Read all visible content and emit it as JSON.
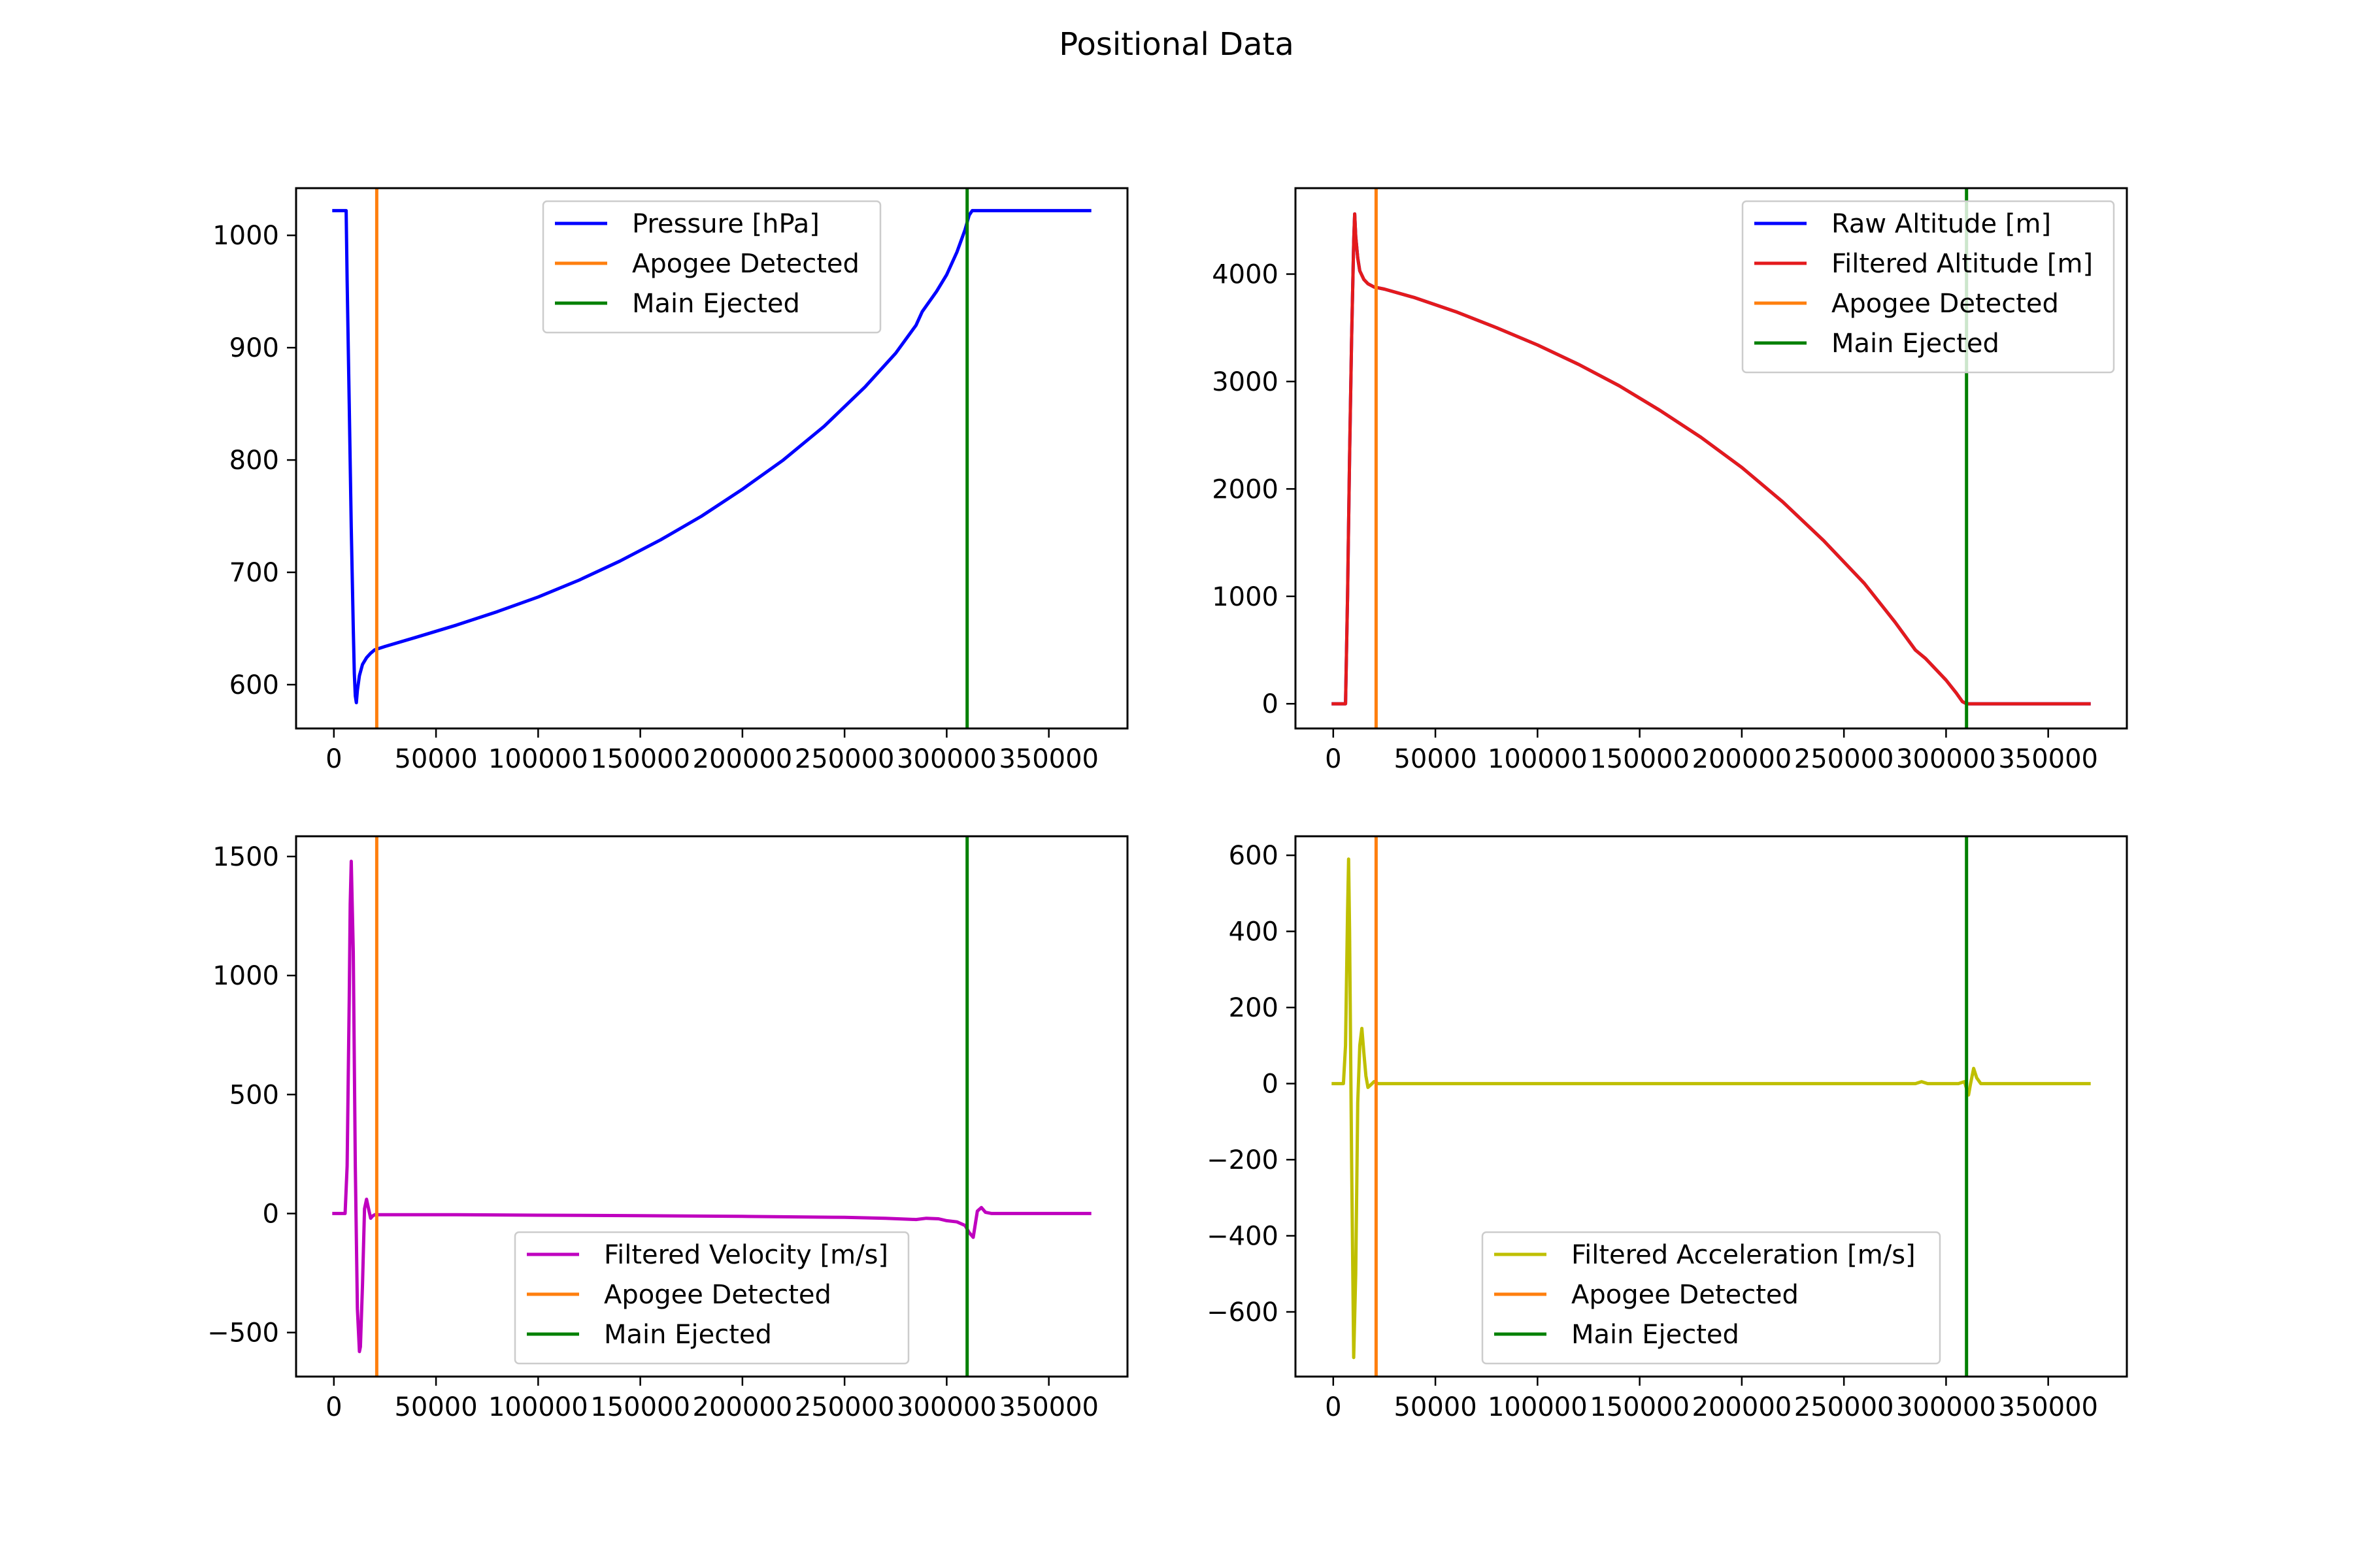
{
  "figure": {
    "title": "Positional Data"
  },
  "chart_data": [
    {
      "type": "line",
      "title": "",
      "xlabel": "",
      "ylabel": "",
      "xlim": [
        -18500,
        388500
      ],
      "ylim": [
        561,
        1042
      ],
      "xticks": [
        0,
        50000,
        100000,
        150000,
        200000,
        250000,
        300000,
        350000
      ],
      "yticks": [
        600,
        700,
        800,
        900,
        1000
      ],
      "grid": false,
      "legend": "upper center",
      "series": [
        {
          "name": "Pressure [hPa]",
          "color": "#0000ff",
          "x": [
            0,
            6000,
            6500,
            7500,
            8500,
            9500,
            10000,
            10500,
            11000,
            11500,
            12500,
            14000,
            16000,
            18000,
            20000,
            25000,
            40000,
            60000,
            80000,
            100000,
            120000,
            140000,
            160000,
            180000,
            200000,
            220000,
            240000,
            260000,
            275000,
            285000,
            288000,
            295000,
            300000,
            305000,
            309000,
            311000,
            312500,
            340000,
            370000
          ],
          "y": [
            1022,
            1022,
            960,
            850,
            740,
            650,
            610,
            590,
            584,
            595,
            608,
            618,
            624,
            628,
            631,
            634,
            642,
            653,
            665,
            678,
            693,
            710,
            729,
            750,
            774,
            800,
            830,
            865,
            895,
            920,
            932,
            950,
            965,
            985,
            1005,
            1018,
            1022,
            1022,
            1022
          ]
        },
        {
          "name": "Apogee Detected",
          "color": "#ff7f0e",
          "x": [
            21000,
            21000
          ],
          "y": [
            561,
            1042
          ]
        },
        {
          "name": "Main Ejected",
          "color": "#008000",
          "x": [
            310000,
            310000
          ],
          "y": [
            561,
            1042
          ]
        }
      ]
    },
    {
      "type": "line",
      "title": "",
      "xlabel": "",
      "ylabel": "",
      "xlim": [
        -18500,
        388500
      ],
      "ylim": [
        -230,
        4800
      ],
      "xticks": [
        0,
        50000,
        100000,
        150000,
        200000,
        250000,
        300000,
        350000
      ],
      "yticks": [
        0,
        1000,
        2000,
        3000,
        4000
      ],
      "grid": false,
      "legend": "upper right",
      "series": [
        {
          "name": "Raw Altitude [m]",
          "color": "#0000ff",
          "x": [
            0,
            6000,
            7000,
            8000,
            9000,
            10000,
            10500,
            11000,
            12000,
            13000,
            15000,
            17000,
            20000,
            25000,
            40000,
            60000,
            80000,
            100000,
            120000,
            140000,
            160000,
            180000,
            200000,
            220000,
            240000,
            260000,
            275000,
            285000,
            290000,
            300000,
            305000,
            308000,
            310000,
            311500,
            312500,
            340000,
            370000
          ],
          "y": [
            0,
            0,
            1000,
            2300,
            3400,
            4300,
            4560,
            4350,
            4150,
            4030,
            3950,
            3910,
            3880,
            3860,
            3780,
            3650,
            3500,
            3340,
            3160,
            2960,
            2730,
            2480,
            2200,
            1880,
            1520,
            1120,
            760,
            500,
            420,
            220,
            100,
            20,
            0,
            0,
            0,
            0,
            0
          ]
        },
        {
          "name": "Filtered Altitude [m]",
          "color": "#e41a1c",
          "x": [
            0,
            6000,
            7000,
            8000,
            9000,
            10000,
            10500,
            11000,
            12000,
            13000,
            15000,
            17000,
            20000,
            25000,
            40000,
            60000,
            80000,
            100000,
            120000,
            140000,
            160000,
            180000,
            200000,
            220000,
            240000,
            260000,
            275000,
            285000,
            290000,
            300000,
            305000,
            308000,
            310000,
            311500,
            312500,
            340000,
            370000
          ],
          "y": [
            0,
            0,
            1000,
            2300,
            3400,
            4300,
            4560,
            4350,
            4150,
            4030,
            3950,
            3910,
            3880,
            3860,
            3780,
            3650,
            3500,
            3340,
            3160,
            2960,
            2730,
            2480,
            2200,
            1880,
            1520,
            1120,
            760,
            500,
            420,
            220,
            100,
            20,
            0,
            0,
            0,
            0,
            0
          ]
        },
        {
          "name": "Apogee Detected",
          "color": "#ff7f0e",
          "x": [
            21000,
            21000
          ],
          "y": [
            -230,
            4800
          ]
        },
        {
          "name": "Main Ejected",
          "color": "#008000",
          "x": [
            310000,
            310000
          ],
          "y": [
            -230,
            4800
          ]
        }
      ]
    },
    {
      "type": "line",
      "title": "",
      "xlabel": "",
      "ylabel": "",
      "xlim": [
        -18500,
        388500
      ],
      "ylim": [
        -685,
        1585
      ],
      "xticks": [
        0,
        50000,
        100000,
        150000,
        200000,
        250000,
        300000,
        350000
      ],
      "yticks": [
        -500,
        0,
        500,
        1000,
        1500
      ],
      "grid": false,
      "legend": "lower center",
      "series": [
        {
          "name": "Filtered Velocity [m/s]",
          "color": "#bf00bf",
          "x": [
            0,
            5500,
            6500,
            7500,
            8000,
            8500,
            9500,
            10500,
            11500,
            12500,
            13000,
            14000,
            15000,
            16000,
            17000,
            18000,
            19000,
            20000,
            22000,
            25000,
            60000,
            100000,
            150000,
            200000,
            250000,
            270000,
            285000,
            290000,
            296000,
            300000,
            305000,
            309000,
            311000,
            313000,
            315000,
            317000,
            319000,
            322000,
            330000,
            370000
          ],
          "y": [
            0,
            0,
            200,
            900,
            1300,
            1480,
            1100,
            200,
            -400,
            -580,
            -560,
            -300,
            20,
            60,
            20,
            -20,
            -10,
            -5,
            -5,
            -5,
            -5,
            -7,
            -9,
            -12,
            -16,
            -20,
            -25,
            -20,
            -22,
            -30,
            -35,
            -50,
            -80,
            -100,
            10,
            25,
            5,
            0,
            0,
            0
          ]
        },
        {
          "name": "Apogee Detected",
          "color": "#ff7f0e",
          "x": [
            21000,
            21000
          ],
          "y": [
            -685,
            1585
          ]
        },
        {
          "name": "Main Ejected",
          "color": "#008000",
          "x": [
            310000,
            310000
          ],
          "y": [
            -685,
            1585
          ]
        }
      ]
    },
    {
      "type": "line",
      "title": "",
      "xlabel": "",
      "ylabel": "",
      "xlim": [
        -18500,
        388500
      ],
      "ylim": [
        -770,
        650
      ],
      "xticks": [
        0,
        50000,
        100000,
        150000,
        200000,
        250000,
        300000,
        350000
      ],
      "yticks": [
        -600,
        -400,
        -200,
        0,
        200,
        400,
        600
      ],
      "grid": false,
      "legend": "lower center",
      "series": [
        {
          "name": "Filtered Acceleration [m/s]",
          "color": "#bfbf00",
          "x": [
            0,
            5000,
            6000,
            7000,
            7500,
            8000,
            9000,
            10000,
            11000,
            12000,
            13000,
            14000,
            15000,
            16000,
            17000,
            18000,
            19000,
            20000,
            22000,
            25000,
            100000,
            200000,
            285000,
            288000,
            291000,
            300000,
            306000,
            309000,
            311000,
            312000,
            313500,
            315000,
            317000,
            320000,
            330000,
            370000
          ],
          "y": [
            0,
            0,
            100,
            450,
            590,
            400,
            -200,
            -720,
            -500,
            -50,
            100,
            145,
            80,
            20,
            -10,
            -5,
            0,
            5,
            0,
            0,
            0,
            0,
            0,
            5,
            0,
            0,
            0,
            5,
            -30,
            0,
            40,
            15,
            0,
            0,
            0,
            0
          ]
        },
        {
          "name": "Apogee Detected",
          "color": "#ff7f0e",
          "x": [
            21000,
            21000
          ],
          "y": [
            -770,
            650
          ]
        },
        {
          "name": "Main Ejected",
          "color": "#008000",
          "x": [
            310000,
            310000
          ],
          "y": [
            -770,
            650
          ]
        }
      ]
    }
  ]
}
